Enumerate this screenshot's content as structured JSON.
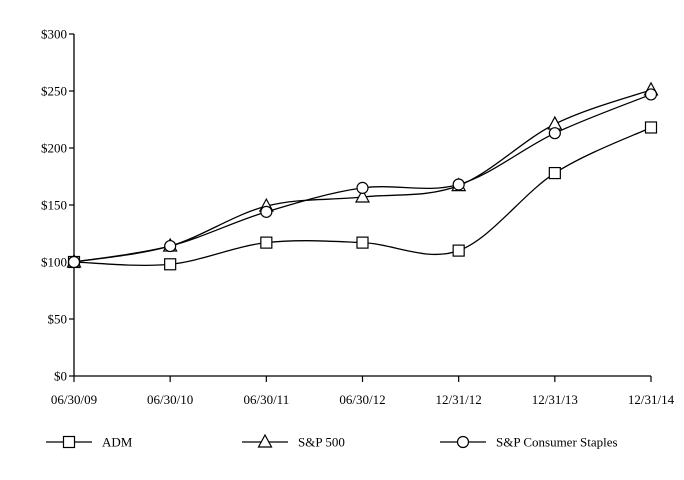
{
  "chart_data": {
    "type": "line",
    "title": "",
    "xlabel": "",
    "ylabel": "",
    "categories": [
      "06/30/09",
      "06/30/10",
      "06/30/11",
      "06/30/12",
      "12/31/12",
      "12/31/13",
      "12/31/14"
    ],
    "ylim": [
      0,
      300
    ],
    "yticks": [
      0,
      50,
      100,
      150,
      200,
      250,
      300
    ],
    "ytick_labels": [
      "$0",
      "$50",
      "$100",
      "$150",
      "$200",
      "$250",
      "$300"
    ],
    "grid": false,
    "legend_position": "bottom",
    "series": [
      {
        "name": "ADM",
        "marker": "square",
        "values": [
          100,
          98,
          117,
          117,
          110,
          178,
          218
        ]
      },
      {
        "name": "S&P 500",
        "marker": "triangle",
        "values": [
          100,
          114,
          149,
          157,
          167,
          221,
          251
        ]
      },
      {
        "name": "S&P Consumer Staples",
        "marker": "circle",
        "values": [
          100,
          114,
          144,
          165,
          168,
          213,
          247
        ]
      }
    ]
  }
}
